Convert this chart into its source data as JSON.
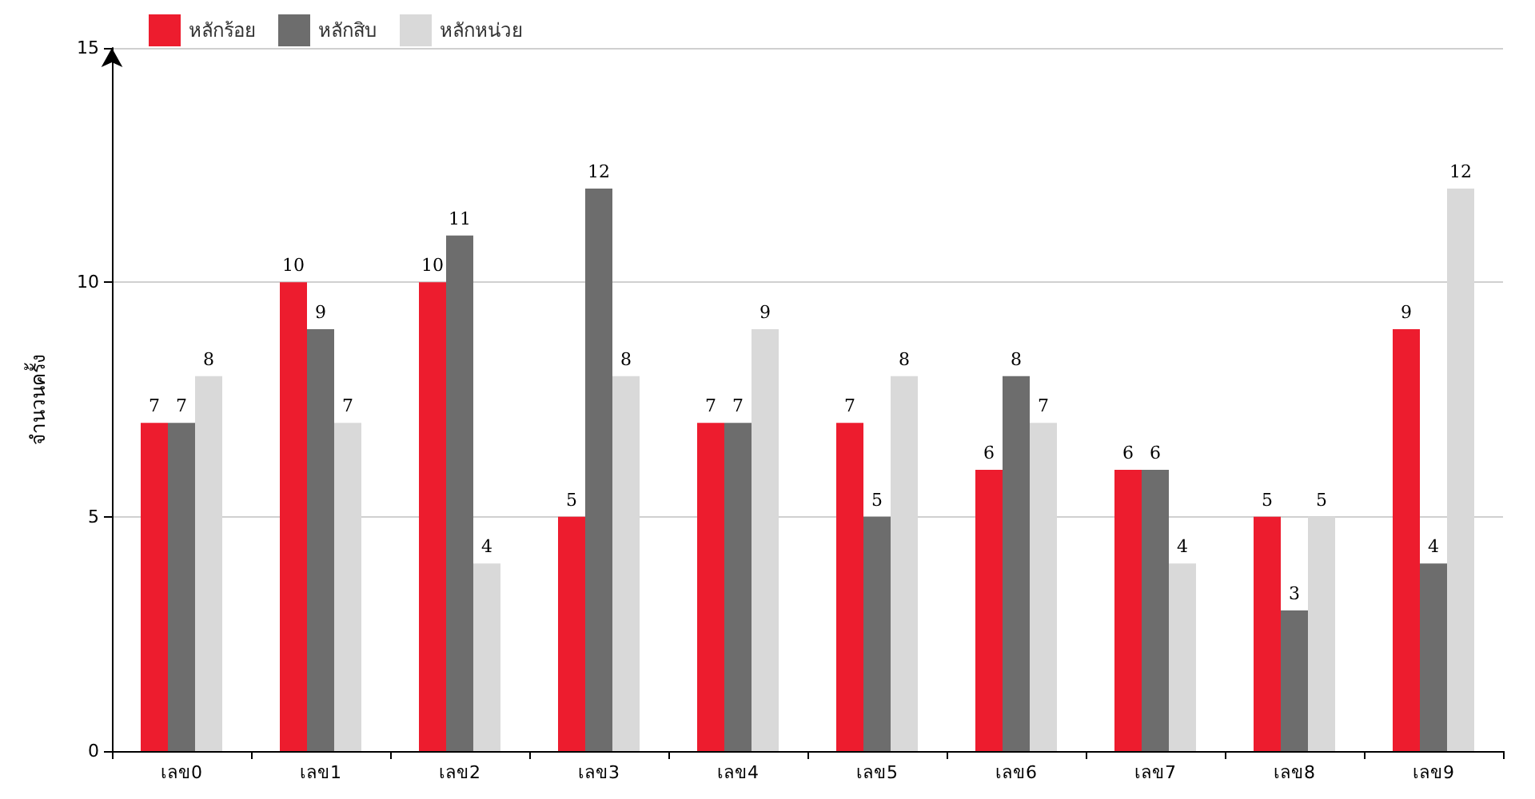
{
  "chart_data": {
    "type": "bar",
    "ylabel": "จำนวนครั้ง",
    "categories": [
      "เลข0",
      "เลข1",
      "เลข2",
      "เลข3",
      "เลข4",
      "เลข5",
      "เลข6",
      "เลข7",
      "เลข8",
      "เลข9"
    ],
    "series": [
      {
        "name": "หลักร้อย",
        "color": "#ed1c2e",
        "values": [
          7,
          10,
          10,
          5,
          7,
          7,
          6,
          6,
          5,
          9
        ]
      },
      {
        "name": "หลักสิบ",
        "color": "#6d6d6d",
        "values": [
          7,
          9,
          11,
          12,
          7,
          5,
          8,
          6,
          3,
          4
        ]
      },
      {
        "name": "หลักหน่วย",
        "color": "#d9d9d9",
        "values": [
          8,
          7,
          4,
          8,
          9,
          8,
          7,
          4,
          5,
          12
        ]
      }
    ],
    "ylim": [
      0,
      15
    ],
    "yticks": [
      0,
      5,
      10,
      15
    ],
    "grid": "y",
    "legend": "top left",
    "data_labels": true
  }
}
